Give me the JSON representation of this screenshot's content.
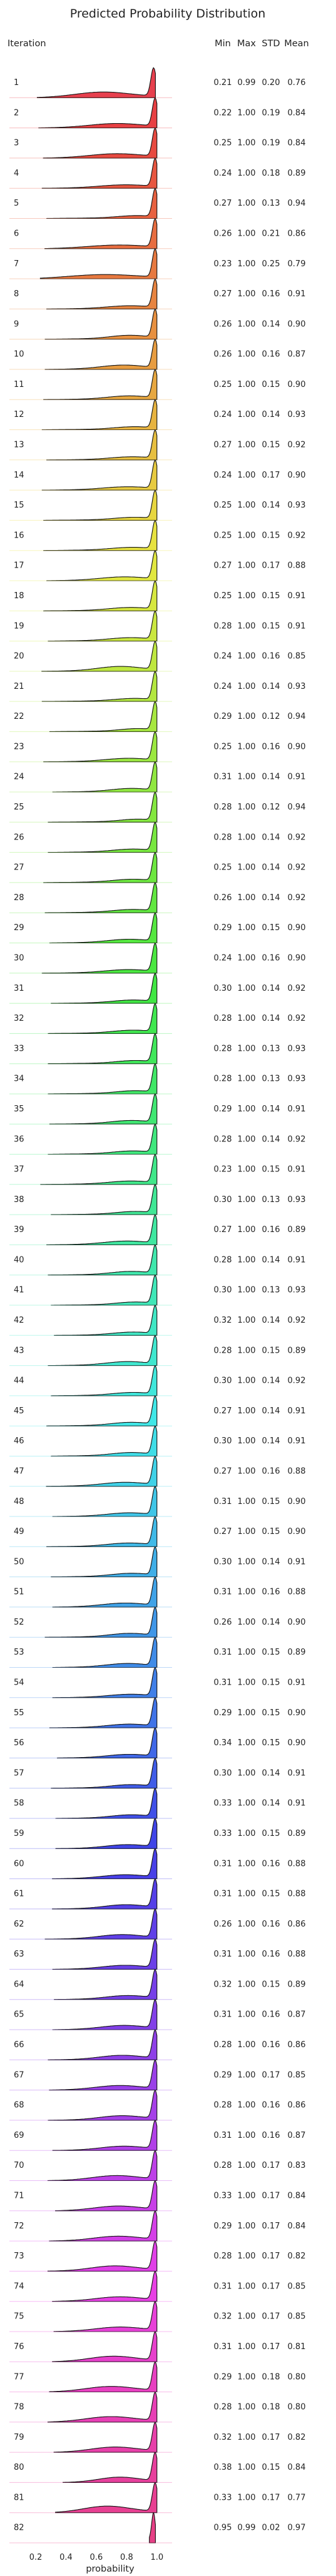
{
  "chart_data": {
    "type": "ridgeline",
    "title": "Predicted Probability Distribution",
    "xlabel": "probability",
    "xlim": [
      0.15,
      1.1
    ],
    "xticks": [
      0.2,
      0.4,
      0.6,
      0.8,
      1.0
    ],
    "xtick_labels": [
      "0.2",
      "0.4",
      "0.6",
      "0.8",
      "1.0"
    ],
    "row_header": "Iteration",
    "stat_headers": [
      "Min",
      "Max",
      "STD",
      "Mean"
    ],
    "rows": [
      {
        "label": "1",
        "min": "0.21",
        "max": "0.99",
        "std": "0.20",
        "mean": "0.76"
      },
      {
        "label": "2",
        "min": "0.22",
        "max": "1.00",
        "std": "0.19",
        "mean": "0.84"
      },
      {
        "label": "3",
        "min": "0.25",
        "max": "1.00",
        "std": "0.19",
        "mean": "0.84"
      },
      {
        "label": "4",
        "min": "0.24",
        "max": "1.00",
        "std": "0.18",
        "mean": "0.89"
      },
      {
        "label": "5",
        "min": "0.27",
        "max": "1.00",
        "std": "0.13",
        "mean": "0.94"
      },
      {
        "label": "6",
        "min": "0.26",
        "max": "1.00",
        "std": "0.21",
        "mean": "0.86"
      },
      {
        "label": "7",
        "min": "0.23",
        "max": "1.00",
        "std": "0.25",
        "mean": "0.79"
      },
      {
        "label": "8",
        "min": "0.27",
        "max": "1.00",
        "std": "0.16",
        "mean": "0.91"
      },
      {
        "label": "9",
        "min": "0.26",
        "max": "1.00",
        "std": "0.14",
        "mean": "0.90"
      },
      {
        "label": "10",
        "min": "0.26",
        "max": "1.00",
        "std": "0.16",
        "mean": "0.87"
      },
      {
        "label": "11",
        "min": "0.25",
        "max": "1.00",
        "std": "0.15",
        "mean": "0.90"
      },
      {
        "label": "12",
        "min": "0.24",
        "max": "1.00",
        "std": "0.14",
        "mean": "0.93"
      },
      {
        "label": "13",
        "min": "0.27",
        "max": "1.00",
        "std": "0.15",
        "mean": "0.92"
      },
      {
        "label": "14",
        "min": "0.24",
        "max": "1.00",
        "std": "0.17",
        "mean": "0.90"
      },
      {
        "label": "15",
        "min": "0.25",
        "max": "1.00",
        "std": "0.14",
        "mean": "0.93"
      },
      {
        "label": "16",
        "min": "0.25",
        "max": "1.00",
        "std": "0.15",
        "mean": "0.92"
      },
      {
        "label": "17",
        "min": "0.27",
        "max": "1.00",
        "std": "0.17",
        "mean": "0.88"
      },
      {
        "label": "18",
        "min": "0.25",
        "max": "1.00",
        "std": "0.15",
        "mean": "0.91"
      },
      {
        "label": "19",
        "min": "0.28",
        "max": "1.00",
        "std": "0.15",
        "mean": "0.91"
      },
      {
        "label": "20",
        "min": "0.24",
        "max": "1.00",
        "std": "0.16",
        "mean": "0.85"
      },
      {
        "label": "21",
        "min": "0.24",
        "max": "1.00",
        "std": "0.14",
        "mean": "0.93"
      },
      {
        "label": "22",
        "min": "0.29",
        "max": "1.00",
        "std": "0.12",
        "mean": "0.94"
      },
      {
        "label": "23",
        "min": "0.25",
        "max": "1.00",
        "std": "0.16",
        "mean": "0.90"
      },
      {
        "label": "24",
        "min": "0.31",
        "max": "1.00",
        "std": "0.14",
        "mean": "0.91"
      },
      {
        "label": "25",
        "min": "0.28",
        "max": "1.00",
        "std": "0.12",
        "mean": "0.94"
      },
      {
        "label": "26",
        "min": "0.28",
        "max": "1.00",
        "std": "0.14",
        "mean": "0.92"
      },
      {
        "label": "27",
        "min": "0.25",
        "max": "1.00",
        "std": "0.14",
        "mean": "0.92"
      },
      {
        "label": "28",
        "min": "0.26",
        "max": "1.00",
        "std": "0.14",
        "mean": "0.92"
      },
      {
        "label": "29",
        "min": "0.29",
        "max": "1.00",
        "std": "0.15",
        "mean": "0.90"
      },
      {
        "label": "30",
        "min": "0.24",
        "max": "1.00",
        "std": "0.16",
        "mean": "0.90"
      },
      {
        "label": "31",
        "min": "0.30",
        "max": "1.00",
        "std": "0.14",
        "mean": "0.92"
      },
      {
        "label": "32",
        "min": "0.28",
        "max": "1.00",
        "std": "0.14",
        "mean": "0.92"
      },
      {
        "label": "33",
        "min": "0.28",
        "max": "1.00",
        "std": "0.13",
        "mean": "0.93"
      },
      {
        "label": "34",
        "min": "0.28",
        "max": "1.00",
        "std": "0.13",
        "mean": "0.93"
      },
      {
        "label": "35",
        "min": "0.29",
        "max": "1.00",
        "std": "0.14",
        "mean": "0.91"
      },
      {
        "label": "36",
        "min": "0.28",
        "max": "1.00",
        "std": "0.14",
        "mean": "0.92"
      },
      {
        "label": "37",
        "min": "0.23",
        "max": "1.00",
        "std": "0.15",
        "mean": "0.91"
      },
      {
        "label": "38",
        "min": "0.30",
        "max": "1.00",
        "std": "0.13",
        "mean": "0.93"
      },
      {
        "label": "39",
        "min": "0.27",
        "max": "1.00",
        "std": "0.16",
        "mean": "0.89"
      },
      {
        "label": "40",
        "min": "0.28",
        "max": "1.00",
        "std": "0.14",
        "mean": "0.91"
      },
      {
        "label": "41",
        "min": "0.30",
        "max": "1.00",
        "std": "0.13",
        "mean": "0.93"
      },
      {
        "label": "42",
        "min": "0.32",
        "max": "1.00",
        "std": "0.14",
        "mean": "0.92"
      },
      {
        "label": "43",
        "min": "0.28",
        "max": "1.00",
        "std": "0.15",
        "mean": "0.89"
      },
      {
        "label": "44",
        "min": "0.30",
        "max": "1.00",
        "std": "0.14",
        "mean": "0.92"
      },
      {
        "label": "45",
        "min": "0.27",
        "max": "1.00",
        "std": "0.14",
        "mean": "0.91"
      },
      {
        "label": "46",
        "min": "0.30",
        "max": "1.00",
        "std": "0.14",
        "mean": "0.91"
      },
      {
        "label": "47",
        "min": "0.27",
        "max": "1.00",
        "std": "0.16",
        "mean": "0.88"
      },
      {
        "label": "48",
        "min": "0.31",
        "max": "1.00",
        "std": "0.15",
        "mean": "0.90"
      },
      {
        "label": "49",
        "min": "0.27",
        "max": "1.00",
        "std": "0.15",
        "mean": "0.90"
      },
      {
        "label": "50",
        "min": "0.30",
        "max": "1.00",
        "std": "0.14",
        "mean": "0.91"
      },
      {
        "label": "51",
        "min": "0.31",
        "max": "1.00",
        "std": "0.16",
        "mean": "0.88"
      },
      {
        "label": "52",
        "min": "0.26",
        "max": "1.00",
        "std": "0.14",
        "mean": "0.90"
      },
      {
        "label": "53",
        "min": "0.31",
        "max": "1.00",
        "std": "0.15",
        "mean": "0.89"
      },
      {
        "label": "54",
        "min": "0.31",
        "max": "1.00",
        "std": "0.15",
        "mean": "0.91"
      },
      {
        "label": "55",
        "min": "0.29",
        "max": "1.00",
        "std": "0.15",
        "mean": "0.90"
      },
      {
        "label": "56",
        "min": "0.34",
        "max": "1.00",
        "std": "0.15",
        "mean": "0.90"
      },
      {
        "label": "57",
        "min": "0.30",
        "max": "1.00",
        "std": "0.14",
        "mean": "0.91"
      },
      {
        "label": "58",
        "min": "0.33",
        "max": "1.00",
        "std": "0.14",
        "mean": "0.91"
      },
      {
        "label": "59",
        "min": "0.33",
        "max": "1.00",
        "std": "0.15",
        "mean": "0.89"
      },
      {
        "label": "60",
        "min": "0.31",
        "max": "1.00",
        "std": "0.16",
        "mean": "0.88"
      },
      {
        "label": "61",
        "min": "0.31",
        "max": "1.00",
        "std": "0.15",
        "mean": "0.88"
      },
      {
        "label": "62",
        "min": "0.26",
        "max": "1.00",
        "std": "0.16",
        "mean": "0.86"
      },
      {
        "label": "63",
        "min": "0.31",
        "max": "1.00",
        "std": "0.16",
        "mean": "0.88"
      },
      {
        "label": "64",
        "min": "0.32",
        "max": "1.00",
        "std": "0.15",
        "mean": "0.89"
      },
      {
        "label": "65",
        "min": "0.31",
        "max": "1.00",
        "std": "0.16",
        "mean": "0.87"
      },
      {
        "label": "66",
        "min": "0.28",
        "max": "1.00",
        "std": "0.16",
        "mean": "0.86"
      },
      {
        "label": "67",
        "min": "0.29",
        "max": "1.00",
        "std": "0.17",
        "mean": "0.85"
      },
      {
        "label": "68",
        "min": "0.28",
        "max": "1.00",
        "std": "0.16",
        "mean": "0.86"
      },
      {
        "label": "69",
        "min": "0.31",
        "max": "1.00",
        "std": "0.16",
        "mean": "0.87"
      },
      {
        "label": "70",
        "min": "0.28",
        "max": "1.00",
        "std": "0.17",
        "mean": "0.83"
      },
      {
        "label": "71",
        "min": "0.33",
        "max": "1.00",
        "std": "0.17",
        "mean": "0.84"
      },
      {
        "label": "72",
        "min": "0.29",
        "max": "1.00",
        "std": "0.17",
        "mean": "0.84"
      },
      {
        "label": "73",
        "min": "0.28",
        "max": "1.00",
        "std": "0.17",
        "mean": "0.82"
      },
      {
        "label": "74",
        "min": "0.31",
        "max": "1.00",
        "std": "0.17",
        "mean": "0.85"
      },
      {
        "label": "75",
        "min": "0.32",
        "max": "1.00",
        "std": "0.17",
        "mean": "0.85"
      },
      {
        "label": "76",
        "min": "0.31",
        "max": "1.00",
        "std": "0.17",
        "mean": "0.81"
      },
      {
        "label": "77",
        "min": "0.29",
        "max": "1.00",
        "std": "0.18",
        "mean": "0.80"
      },
      {
        "label": "78",
        "min": "0.28",
        "max": "1.00",
        "std": "0.18",
        "mean": "0.80"
      },
      {
        "label": "79",
        "min": "0.32",
        "max": "1.00",
        "std": "0.17",
        "mean": "0.82"
      },
      {
        "label": "80",
        "min": "0.38",
        "max": "1.00",
        "std": "0.15",
        "mean": "0.84"
      },
      {
        "label": "81",
        "min": "0.33",
        "max": "1.00",
        "std": "0.17",
        "mean": "0.77"
      },
      {
        "label": "82",
        "min": "0.95",
        "max": "0.99",
        "std": "0.02",
        "mean": "0.97"
      }
    ]
  }
}
